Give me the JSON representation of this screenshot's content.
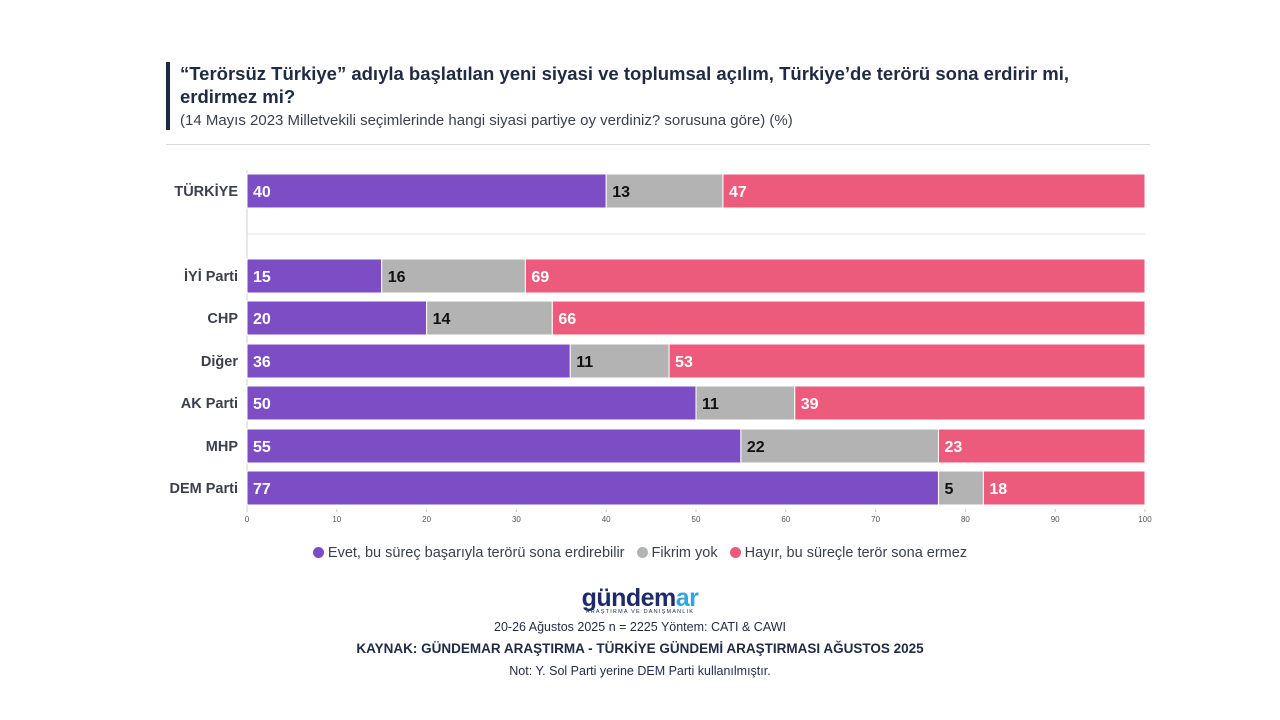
{
  "header": {
    "title": "“Terörsüz Türkiye” adıyla başlatılan yeni siyasi ve toplumsal açılım, Türkiye’de terörü sona erdirir mi, erdirmez mi?",
    "subtitle": "(14 Mayıs 2023 Milletvekili seçimlerinde hangi siyasi partiye oy verdiniz? sorusuna göre) (%)"
  },
  "chart_data": {
    "type": "bar",
    "orientation": "horizontal",
    "stacked": true,
    "categories": [
      "TÜRKİYE",
      "İYİ Parti",
      "CHP",
      "Diğer",
      "AK Parti",
      "MHP",
      "DEM Parti"
    ],
    "series": [
      {
        "name": "Evet, bu süreç başarıyla terörü sona erdirebilir",
        "color": "#7c4dc4",
        "label_color": "#ffffff",
        "values": [
          40,
          15,
          20,
          36,
          50,
          55,
          77
        ]
      },
      {
        "name": "Fikrim yok",
        "color": "#b3b3b3",
        "label_color": "#111111",
        "values": [
          13,
          16,
          14,
          11,
          11,
          22,
          5
        ]
      },
      {
        "name": "Hayır, bu süreçle terör sona ermez",
        "color": "#ec5b7b",
        "label_color": "#ffffff",
        "values": [
          47,
          69,
          66,
          53,
          39,
          23,
          18
        ]
      }
    ],
    "xlim": [
      0,
      100
    ],
    "xticks": [
      0,
      10,
      20,
      30,
      40,
      50,
      60,
      70,
      80,
      90,
      100
    ],
    "legend_position": "bottom"
  },
  "footer": {
    "logo_main": "gündem",
    "logo_accent": "ar",
    "logo_sub": "ARAŞTIRMA VE DANIŞMANLIK",
    "method": "20-26 Ağustos 2025 n = 2225 Yöntem: CATI & CAWI",
    "source": "KAYNAK: GÜNDEMAR ARAŞTIRMA - TÜRKİYE GÜNDEMİ ARAŞTIRMASI AĞUSTOS 2025",
    "note": "Not: Y. Sol Parti yerine DEM Parti kullanılmıştır."
  }
}
